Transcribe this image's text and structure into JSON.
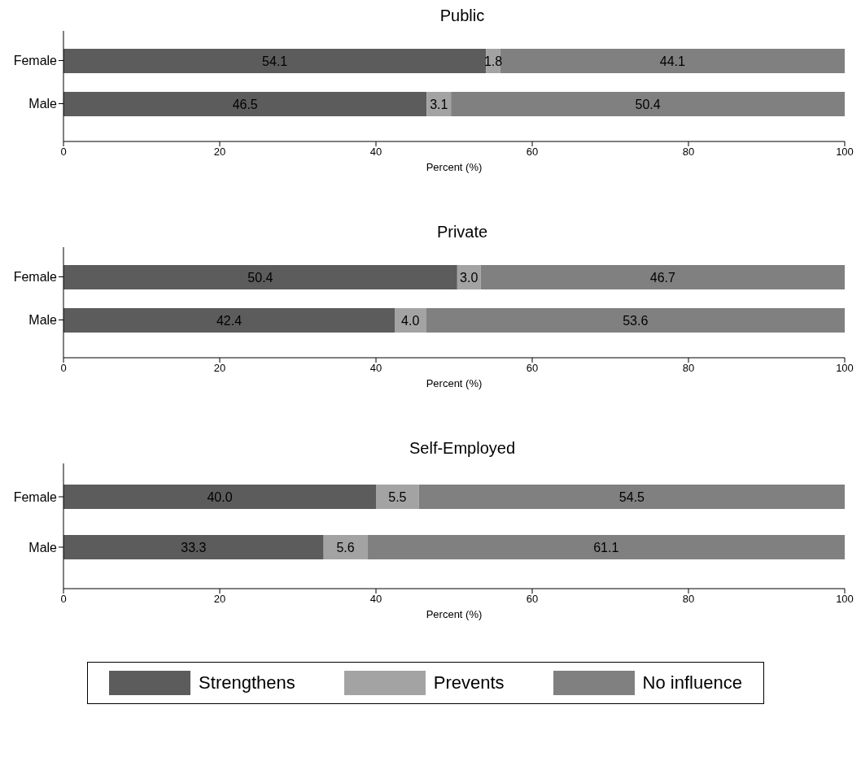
{
  "chart_data": [
    {
      "type": "bar",
      "title": "Public",
      "orientation": "horizontal",
      "stacked": true,
      "categories": [
        "Female",
        "Male"
      ],
      "xlabel": "Percent (%)",
      "xlim": [
        0,
        100
      ],
      "xticks": [
        0,
        20,
        40,
        60,
        80,
        100
      ],
      "grid": false,
      "legend": false,
      "series": [
        {
          "color": "#5c5c5c",
          "values": [
            54.1,
            46.5
          ],
          "value_labels": [
            "54.1",
            "46.5"
          ]
        },
        {
          "color": "#a3a3a3",
          "values": [
            1.8,
            3.1
          ],
          "value_labels": [
            "1.8",
            "3.1"
          ]
        },
        {
          "color": "#808080",
          "values": [
            44.1,
            50.4
          ],
          "value_labels": [
            "44.1",
            "50.4"
          ]
        }
      ]
    },
    {
      "type": "bar",
      "title": "Private",
      "orientation": "horizontal",
      "stacked": true,
      "categories": [
        "Female",
        "Male"
      ],
      "xlabel": "Percent (%)",
      "xlim": [
        0,
        100
      ],
      "xticks": [
        0,
        20,
        40,
        60,
        80,
        100
      ],
      "grid": false,
      "legend": false,
      "series": [
        {
          "color": "#5c5c5c",
          "values": [
            50.4,
            42.4
          ],
          "value_labels": [
            "50.4",
            "42.4"
          ]
        },
        {
          "color": "#a3a3a3",
          "values": [
            3.0,
            4.0
          ],
          "value_labels": [
            "3.0",
            "4.0"
          ]
        },
        {
          "color": "#808080",
          "values": [
            46.7,
            53.6
          ],
          "value_labels": [
            "46.7",
            "53.6"
          ]
        }
      ]
    },
    {
      "type": "bar",
      "title": "Self-Employed",
      "orientation": "horizontal",
      "stacked": true,
      "categories": [
        "Female",
        "Male"
      ],
      "xlabel": "Percent (%)",
      "xlim": [
        0,
        100
      ],
      "xticks": [
        0,
        20,
        40,
        60,
        80,
        100
      ],
      "grid": false,
      "legend": "bottom",
      "series": [
        {
          "name": "Strengthens",
          "color": "#5c5c5c",
          "values": [
            40.0,
            33.3
          ],
          "value_labels": [
            "40.0",
            "33.3"
          ]
        },
        {
          "name": "Prevents",
          "color": "#a3a3a3",
          "values": [
            5.5,
            5.6
          ],
          "value_labels": [
            "5.5",
            "5.6"
          ]
        },
        {
          "name": "No influence",
          "color": "#808080",
          "values": [
            54.5,
            61.1
          ],
          "value_labels": [
            "54.5",
            "61.1"
          ]
        }
      ]
    }
  ]
}
